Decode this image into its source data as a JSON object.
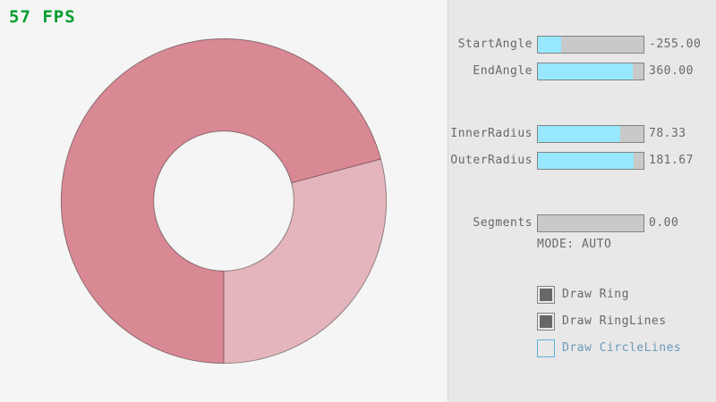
{
  "app": {
    "fps_text": "57 FPS",
    "fps_color": "#009E2F",
    "background_color": "#F5F5F5",
    "panel_color": "#E8E8E8"
  },
  "ring": {
    "start_angle": -255.0,
    "end_angle": 360.0,
    "inner_radius": 78.33,
    "outer_radius": 181.67,
    "segments": 0,
    "color_single_pass": "#E4B5BC",
    "color_double_pass": "#D98994",
    "line_color": "rgba(0,0,0,0.4)"
  },
  "panel": {
    "sliders": [
      {
        "label": "StartAngle",
        "value": "-255.00",
        "fill_pct": 21.7
      },
      {
        "label": "EndAngle",
        "value": "360.00",
        "fill_pct": 90.0
      },
      {
        "label": "InnerRadius",
        "value": "78.33",
        "fill_pct": 78.3
      },
      {
        "label": "OuterRadius",
        "value": "181.67",
        "fill_pct": 90.8
      },
      {
        "label": "Segments",
        "value": "0.00",
        "fill_pct": 0
      }
    ],
    "slider_fill_color": "#97E8FF",
    "mode_text": "MODE: AUTO",
    "checkboxes": [
      {
        "label": "Draw Ring",
        "checked": true,
        "state": "normal"
      },
      {
        "label": "Draw RingLines",
        "checked": true,
        "state": "normal"
      },
      {
        "label": "Draw CircleLines",
        "checked": false,
        "state": "focused"
      }
    ]
  }
}
